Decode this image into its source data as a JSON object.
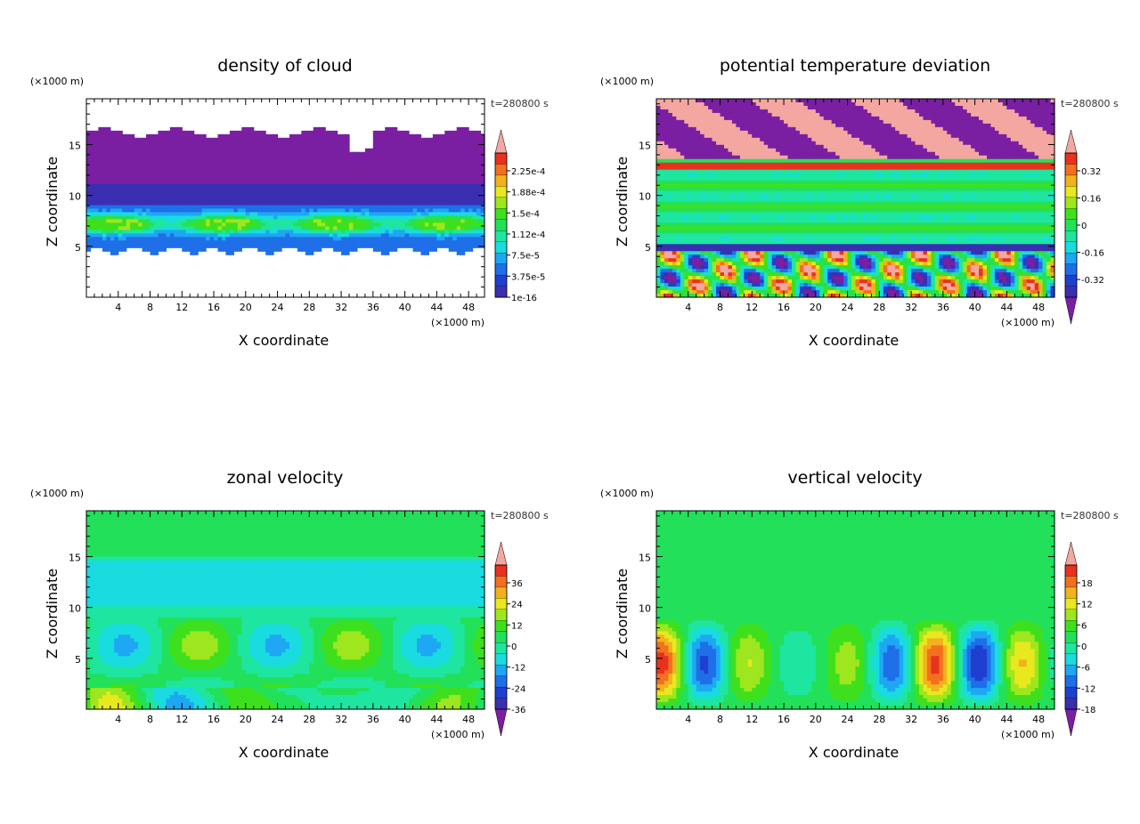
{
  "figure": {
    "panels": [
      {
        "id": "cloud",
        "title": "density of cloud",
        "time": "t=280800 s",
        "z_unit": "(×1000 m)",
        "x_unit": "(×1000 m)",
        "xlabel": "X coordinate",
        "ylabel": "Z coordinate",
        "x_ticks": [
          "4",
          "8",
          "12",
          "16",
          "20",
          "24",
          "28",
          "32",
          "36",
          "40",
          "44",
          "48"
        ],
        "y_ticks": [
          "5",
          "10",
          "15"
        ],
        "colorbar_labels": [
          "2.25e-4",
          "1.88e-4",
          "1.5e-4",
          "1.12e-4",
          "7.5e-5",
          "3.75e-5",
          "1e-16"
        ],
        "colorbar_end_arrows": "top"
      },
      {
        "id": "theta",
        "title": "potential temperature deviation",
        "time": "t=280800 s",
        "z_unit": "(×1000 m)",
        "x_unit": "(×1000 m)",
        "xlabel": "X coordinate",
        "ylabel": "Z coordinate",
        "x_ticks": [
          "4",
          "8",
          "12",
          "16",
          "20",
          "24",
          "28",
          "32",
          "36",
          "40",
          "44",
          "48"
        ],
        "y_ticks": [
          "5",
          "10",
          "15"
        ],
        "colorbar_labels": [
          "0.32",
          "0.16",
          "0",
          "-0.16",
          "-0.32"
        ],
        "colorbar_end_arrows": "both"
      },
      {
        "id": "u",
        "title": "zonal velocity",
        "time": "t=280800 s",
        "z_unit": "(×1000 m)",
        "x_unit": "(×1000 m)",
        "xlabel": "X coordinate",
        "ylabel": "Z coordinate",
        "x_ticks": [
          "4",
          "8",
          "12",
          "16",
          "20",
          "24",
          "28",
          "32",
          "36",
          "40",
          "44",
          "48"
        ],
        "y_ticks": [
          "5",
          "10",
          "15"
        ],
        "colorbar_labels": [
          "36",
          "24",
          "12",
          "0",
          "-12",
          "-24",
          "-36"
        ],
        "colorbar_end_arrows": "both"
      },
      {
        "id": "w",
        "title": "vertical velocity",
        "time": "t=280800 s",
        "z_unit": "(×1000 m)",
        "x_unit": "(×1000 m)",
        "xlabel": "X coordinate",
        "ylabel": "Z coordinate",
        "x_ticks": [
          "4",
          "8",
          "12",
          "16",
          "20",
          "24",
          "28",
          "32",
          "36",
          "40",
          "44",
          "48"
        ],
        "y_ticks": [
          "5",
          "10",
          "15"
        ],
        "colorbar_labels": [
          "18",
          "12",
          "6",
          "0",
          "-6",
          "-12",
          "-18"
        ],
        "colorbar_end_arrows": "both"
      }
    ],
    "colormap": [
      "#7a1fa2",
      "#3a2fb0",
      "#1f3fd0",
      "#1e6fe8",
      "#1ea7f2",
      "#19dbe0",
      "#1ee6a0",
      "#22e05a",
      "#3ee01e",
      "#9ee61e",
      "#e8e81e",
      "#f2b21e",
      "#f2701e",
      "#e8321e",
      "#f4a6a0"
    ]
  },
  "chart_data": [
    {
      "type": "heatmap",
      "title": "density of cloud",
      "xlabel": "X coordinate",
      "ylabel": "Z coordinate",
      "x_unit": "×1000 m",
      "z_unit": "×1000 m",
      "xlim": [
        0,
        50
      ],
      "ylim": [
        0,
        19.5
      ],
      "time_s": 280800,
      "colorbar_levels": [
        1e-16,
        3.75e-05,
        7.5e-05,
        0.000112,
        0.00015,
        0.000188,
        0.000225
      ],
      "features": [
        {
          "description": "cloud layer",
          "z_range": [
            4.5,
            16.5
          ]
        },
        {
          "description": "highest density band",
          "z_range": [
            6,
            8.5
          ],
          "value_approx": 0.00013
        }
      ]
    },
    {
      "type": "heatmap",
      "title": "potential temperature deviation",
      "xlabel": "X coordinate",
      "ylabel": "Z coordinate",
      "xlim": [
        0,
        50
      ],
      "ylim": [
        0,
        19.5
      ],
      "time_s": 280800,
      "colorbar_levels": [
        -0.32,
        -0.16,
        0,
        0.16,
        0.32
      ]
    },
    {
      "type": "heatmap",
      "title": "zonal velocity",
      "xlabel": "X coordinate",
      "ylabel": "Z coordinate",
      "xlim": [
        0,
        50
      ],
      "ylim": [
        0,
        19.5
      ],
      "time_s": 280800,
      "colorbar_levels": [
        -36,
        -24,
        -12,
        0,
        12,
        24,
        36
      ]
    },
    {
      "type": "heatmap",
      "title": "vertical velocity",
      "xlabel": "X coordinate",
      "ylabel": "Z coordinate",
      "xlim": [
        0,
        50
      ],
      "ylim": [
        0,
        19.5
      ],
      "time_s": 280800,
      "colorbar_levels": [
        -18,
        -12,
        -6,
        0,
        6,
        12,
        18
      ]
    }
  ]
}
